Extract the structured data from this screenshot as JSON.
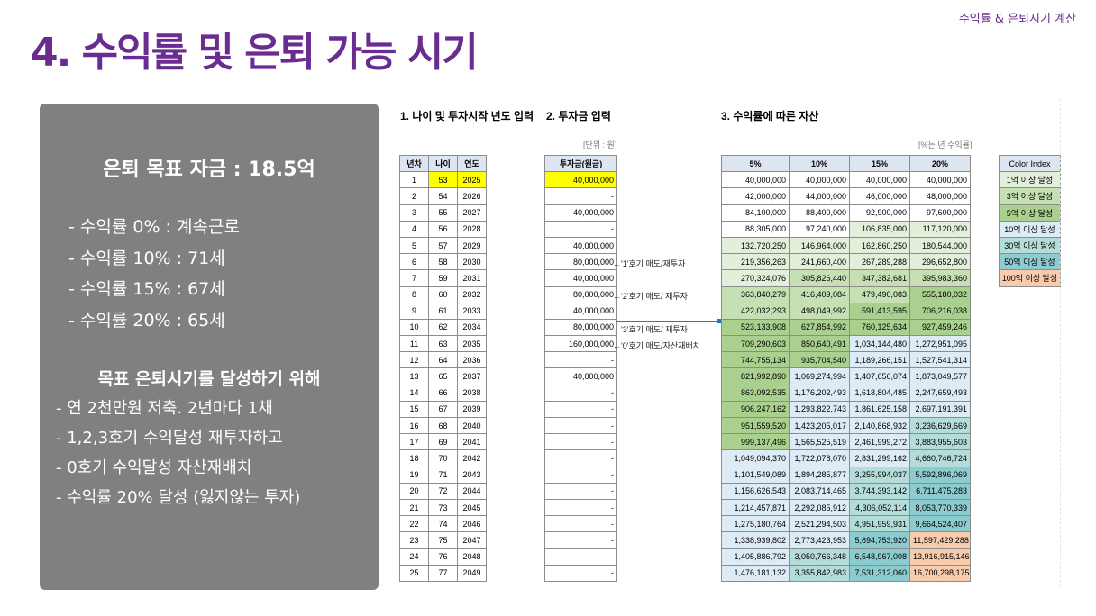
{
  "header": {
    "top_right": "수익률 & 은퇴시기 계산",
    "title": "4. 수익률 및 은퇴 가능 시기"
  },
  "side_panel": {
    "goal": "은퇴 목표 자금 : 18.5억",
    "rates": [
      "- 수익률   0% : 계속근로",
      "- 수익률 10% : 71세",
      "- 수익률 15% : 67세",
      "- 수익률 20% : 65세"
    ],
    "plan_title": "목표 은퇴시기를 달성하기 위해",
    "plans": [
      "- 연 2천만원 저축. 2년마다 1채",
      "- 1,2,3호기 수익달성 재투자하고",
      "- 0호기 수익달성 자산재배치",
      "- 수익률 20% 달성 (잃지않는 투자)"
    ]
  },
  "sheet": {
    "section1": "1. 나이 및 투자시작 년도 입력",
    "section2": "2. 투자금 입력",
    "section3": "3. 수익률에 따른 자산",
    "unit_left": "[단위 : 원]",
    "unit_right": "[%는 년 수익률]",
    "age_headers": [
      "년차",
      "나이",
      "연도"
    ],
    "inv_header": "투자금(원금)",
    "rate_headers": [
      "5%",
      "10%",
      "15%",
      "20%"
    ],
    "notes": [
      "←'1'호기 매도/재투자",
      "←'2'호기 매도/ 재투자",
      "←'3'호기 매도/ 재투자",
      "←'0'호기 매도/자산재배치"
    ],
    "color_index": {
      "header": "Color Index",
      "items": [
        {
          "label": "1억 이상 달성",
          "color": "#e2efda"
        },
        {
          "label": "3억 이상 달성",
          "color": "#c6e0b4"
        },
        {
          "label": "5억 이상 달성",
          "color": "#a9d08e"
        },
        {
          "label": "10억 이상 달성",
          "color": "#ddebf7"
        },
        {
          "label": "30억 이상 달성",
          "color": "#b4dcd9"
        },
        {
          "label": "50억 이상 달성",
          "color": "#8ccbd0"
        },
        {
          "label": "100억 이상 달성",
          "color": "#f8cbad"
        }
      ]
    },
    "rows": [
      {
        "n": "1",
        "age": "53",
        "year": "2025",
        "inv": "40,000,000",
        "v": [
          "40,000,000",
          "40,000,000",
          "40,000,000",
          "40,000,000"
        ]
      },
      {
        "n": "2",
        "age": "54",
        "year": "2026",
        "inv": "-",
        "v": [
          "42,000,000",
          "44,000,000",
          "46,000,000",
          "48,000,000"
        ]
      },
      {
        "n": "3",
        "age": "55",
        "year": "2027",
        "inv": "40,000,000",
        "v": [
          "84,100,000",
          "88,400,000",
          "92,900,000",
          "97,600,000"
        ]
      },
      {
        "n": "4",
        "age": "56",
        "year": "2028",
        "inv": "-",
        "v": [
          "88,305,000",
          "97,240,000",
          "106,835,000",
          "117,120,000"
        ]
      },
      {
        "n": "5",
        "age": "57",
        "year": "2029",
        "inv": "40,000,000",
        "v": [
          "132,720,250",
          "146,964,000",
          "162,860,250",
          "180,544,000"
        ]
      },
      {
        "n": "6",
        "age": "58",
        "year": "2030",
        "inv": "80,000,000",
        "v": [
          "219,356,263",
          "241,660,400",
          "267,289,288",
          "296,652,800"
        ]
      },
      {
        "n": "7",
        "age": "59",
        "year": "2031",
        "inv": "40,000,000",
        "v": [
          "270,324,076",
          "305,826,440",
          "347,382,681",
          "395,983,360"
        ]
      },
      {
        "n": "8",
        "age": "60",
        "year": "2032",
        "inv": "80,000,000",
        "v": [
          "363,840,279",
          "416,409,084",
          "479,490,083",
          "555,180,032"
        ]
      },
      {
        "n": "9",
        "age": "61",
        "year": "2033",
        "inv": "40,000,000",
        "v": [
          "422,032,293",
          "498,049,992",
          "591,413,595",
          "706,216,038"
        ]
      },
      {
        "n": "10",
        "age": "62",
        "year": "2034",
        "inv": "80,000,000",
        "v": [
          "523,133,908",
          "627,854,992",
          "760,125,634",
          "927,459,246"
        ]
      },
      {
        "n": "11",
        "age": "63",
        "year": "2035",
        "inv": "160,000,000",
        "v": [
          "709,290,603",
          "850,640,491",
          "1,034,144,480",
          "1,272,951,095"
        ]
      },
      {
        "n": "12",
        "age": "64",
        "year": "2036",
        "inv": "-",
        "v": [
          "744,755,134",
          "935,704,540",
          "1,189,266,151",
          "1,527,541,314"
        ]
      },
      {
        "n": "13",
        "age": "65",
        "year": "2037",
        "inv": "40,000,000",
        "v": [
          "821,992,890",
          "1,069,274,994",
          "1,407,656,074",
          "1,873,049,577"
        ]
      },
      {
        "n": "14",
        "age": "66",
        "year": "2038",
        "inv": "-",
        "v": [
          "863,092,535",
          "1,176,202,493",
          "1,618,804,485",
          "2,247,659,493"
        ]
      },
      {
        "n": "15",
        "age": "67",
        "year": "2039",
        "inv": "-",
        "v": [
          "906,247,162",
          "1,293,822,743",
          "1,861,625,158",
          "2,697,191,391"
        ]
      },
      {
        "n": "16",
        "age": "68",
        "year": "2040",
        "inv": "-",
        "v": [
          "951,559,520",
          "1,423,205,017",
          "2,140,868,932",
          "3,236,629,669"
        ]
      },
      {
        "n": "17",
        "age": "69",
        "year": "2041",
        "inv": "-",
        "v": [
          "999,137,496",
          "1,565,525,519",
          "2,461,999,272",
          "3,883,955,603"
        ]
      },
      {
        "n": "18",
        "age": "70",
        "year": "2042",
        "inv": "-",
        "v": [
          "1,049,094,370",
          "1,722,078,070",
          "2,831,299,162",
          "4,660,746,724"
        ]
      },
      {
        "n": "19",
        "age": "71",
        "year": "2043",
        "inv": "-",
        "v": [
          "1,101,549,089",
          "1,894,285,877",
          "3,255,994,037",
          "5,592,896,069"
        ]
      },
      {
        "n": "20",
        "age": "72",
        "year": "2044",
        "inv": "-",
        "v": [
          "1,156,626,543",
          "2,083,714,465",
          "3,744,393,142",
          "6,711,475,283"
        ]
      },
      {
        "n": "21",
        "age": "73",
        "year": "2045",
        "inv": "-",
        "v": [
          "1,214,457,871",
          "2,292,085,912",
          "4,306,052,114",
          "8,053,770,339"
        ]
      },
      {
        "n": "22",
        "age": "74",
        "year": "2046",
        "inv": "-",
        "v": [
          "1,275,180,764",
          "2,521,294,503",
          "4,951,959,931",
          "9,664,524,407"
        ]
      },
      {
        "n": "23",
        "age": "75",
        "year": "2047",
        "inv": "-",
        "v": [
          "1,338,939,802",
          "2,773,423,953",
          "5,694,753,920",
          "11,597,429,288"
        ]
      },
      {
        "n": "24",
        "age": "76",
        "year": "2048",
        "inv": "-",
        "v": [
          "1,405,886,792",
          "3,050,766,348",
          "6,548,967,008",
          "13,916,915,146"
        ]
      },
      {
        "n": "25",
        "age": "77",
        "year": "2049",
        "inv": "-",
        "v": [
          "1,476,181,132",
          "3,355,842,983",
          "7,531,312,060",
          "16,700,298,175"
        ]
      }
    ]
  }
}
